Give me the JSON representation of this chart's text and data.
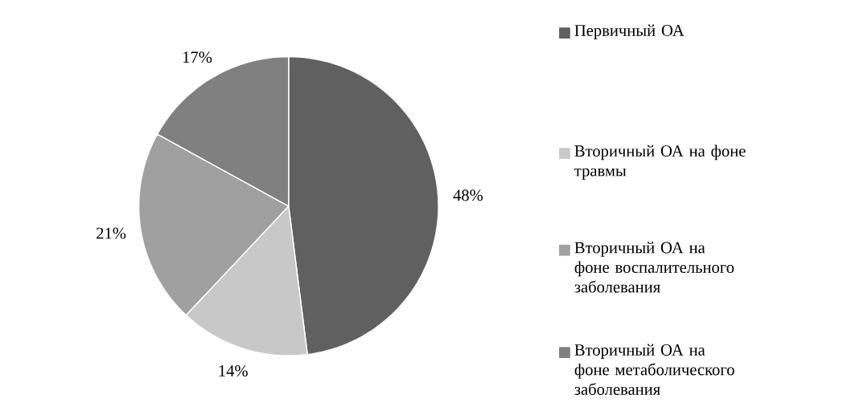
{
  "chart_data": {
    "type": "pie",
    "categories": [
      "Первичный ОА",
      "Вторичный ОА на фоне травмы",
      "Вторичный ОА на фоне воспалительного заболевания",
      "Вторичный ОА на фоне метаболического заболевания"
    ],
    "values": [
      48,
      14,
      21,
      17
    ],
    "colors": [
      "#606060",
      "#c8c8c8",
      "#a0a0a0",
      "#808080"
    ],
    "value_labels": [
      "48%",
      "14%",
      "21%",
      "17%"
    ],
    "legend": "right"
  }
}
